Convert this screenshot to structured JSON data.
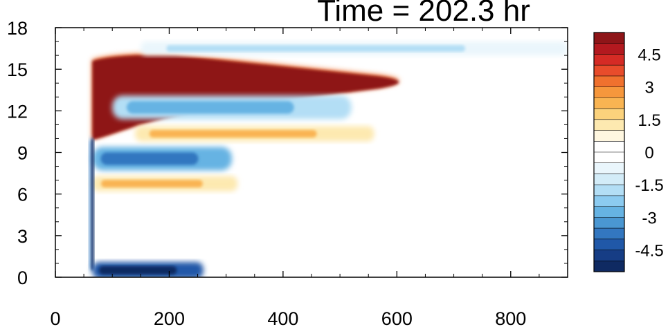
{
  "chart_data": {
    "type": "heatmap",
    "title": "Time = 202.3 hr",
    "xlabel": "",
    "ylabel": "",
    "xlim": [
      0,
      900
    ],
    "ylim": [
      0,
      18
    ],
    "x_ticks": [
      0,
      200,
      400,
      600,
      800
    ],
    "x_tick_labels": [
      "0",
      "200",
      "400",
      "600",
      "800"
    ],
    "y_ticks": [
      0,
      3,
      6,
      9,
      12,
      15,
      18
    ],
    "y_tick_labels": [
      "0",
      "3",
      "6",
      "9",
      "12",
      "15",
      "18"
    ],
    "colorbar": {
      "placement": "right",
      "levels": [
        -5.5,
        -5,
        -4.5,
        -4,
        -3.5,
        -3,
        -2.5,
        -2,
        -1.5,
        -1,
        -0.5,
        0,
        0.5,
        1,
        1.5,
        2,
        2.5,
        3,
        3.5,
        4,
        4.5,
        5,
        5.5
      ],
      "tick_values": [
        4.5,
        3,
        1.5,
        0,
        -1.5,
        -3,
        -4.5
      ],
      "tick_labels": [
        "4.5",
        "3",
        "1.5",
        "0",
        "-1.5",
        "-3",
        "-4.5"
      ],
      "colors_top_to_bottom": [
        "#8e1518",
        "#b3191f",
        "#d52b25",
        "#e84c2b",
        "#f0712e",
        "#f6973c",
        "#f9b452",
        "#fbd27c",
        "#fde9b0",
        "#fff7e0",
        "#ffffff",
        "#ffffff",
        "#eaf6fc",
        "#d3ecf8",
        "#b3def5",
        "#8ccbf0",
        "#66b3e3",
        "#4a97d2",
        "#3377c0",
        "#2058a8",
        "#163d85",
        "#0f2a62"
      ]
    },
    "features": [
      {
        "name": "upper red band",
        "x": [
          65,
          640
        ],
        "y": [
          10,
          16.2
        ],
        "value": 5
      },
      {
        "name": "blue band above red",
        "x": [
          150,
          900
        ],
        "y": [
          16.1,
          16.9
        ],
        "value": -1.5
      },
      {
        "name": "blue band below red",
        "x": [
          100,
          520
        ],
        "y": [
          11.5,
          13
        ],
        "value": -2
      },
      {
        "name": "orange band",
        "x": [
          140,
          560
        ],
        "y": [
          9.9,
          10.8
        ],
        "value": 2
      },
      {
        "name": "blue band",
        "x": [
          65,
          310
        ],
        "y": [
          7.8,
          9.3
        ],
        "value": -3
      },
      {
        "name": "orange band",
        "x": [
          65,
          320
        ],
        "y": [
          6.3,
          7.2
        ],
        "value": 2.5
      },
      {
        "name": "vertical blue streak",
        "x": [
          52,
          72
        ],
        "y": [
          0.5,
          10
        ],
        "value": -5
      },
      {
        "name": "bottom dark blue band",
        "x": [
          65,
          260
        ],
        "y": [
          0,
          1
        ],
        "value": -5
      }
    ]
  }
}
